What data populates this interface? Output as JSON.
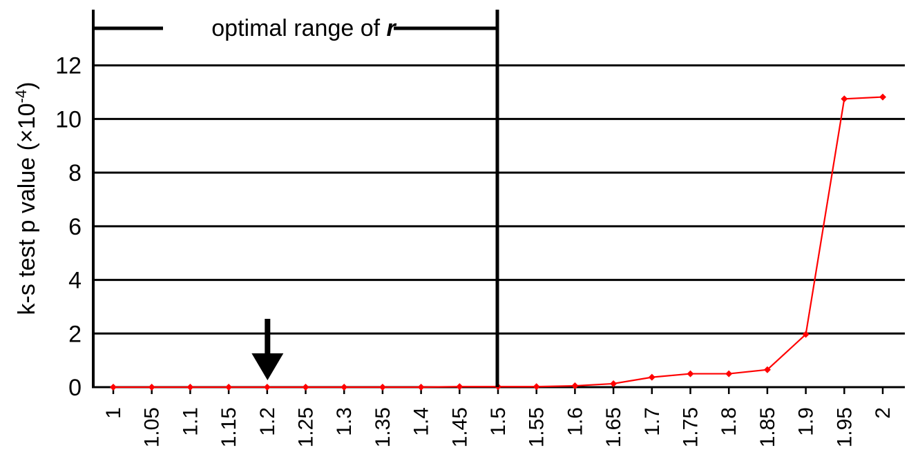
{
  "chart_data": {
    "type": "line",
    "title": "",
    "xlabel": "",
    "ylabel": "k-s test p value (×10",
    "ylabel_exponent": "-4",
    "ylabel_close": ")",
    "ylim": [
      0,
      14
    ],
    "yticks": [
      "0",
      "2",
      "4",
      "6",
      "8",
      "10",
      "12"
    ],
    "grid": true,
    "legend": "none",
    "categories": [
      "1",
      "1.05",
      "1.1",
      "1.15",
      "1.2",
      "1.25",
      "1.3",
      "1.35",
      "1.4",
      "1.45",
      "1.5",
      "1.55",
      "1.6",
      "1.65",
      "1.7",
      "1.75",
      "1.8",
      "1.85",
      "1.9",
      "1.95",
      "2"
    ],
    "series": [
      {
        "color": "#ff0000",
        "values": [
          0,
          0,
          0,
          0,
          0,
          0,
          0,
          0,
          0,
          0.02,
          0.02,
          0.02,
          0.05,
          0.13,
          0.37,
          0.5,
          0.5,
          0.65,
          1.97,
          10.75,
          10.82
        ]
      }
    ],
    "annotation": {
      "bracket_text_pre": "optimal range of ",
      "bracket_text_var": "r",
      "bracket_start": "1",
      "bracket_end": "1.5",
      "arrow_at": "1.2"
    }
  }
}
